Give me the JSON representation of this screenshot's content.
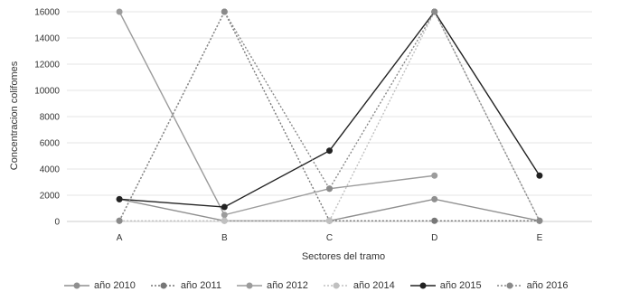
{
  "chart_data": {
    "type": "line",
    "title": "",
    "xlabel": "Sectores del tramo",
    "ylabel": "Concentracion colifomes",
    "categories": [
      "A",
      "B",
      "C",
      "D",
      "E"
    ],
    "ylim": [
      0,
      16000
    ],
    "yticks": [
      "0",
      "2000",
      "4000",
      "6000",
      "8000",
      "10000",
      "12000",
      "14000",
      "16000"
    ],
    "grid": true,
    "legend_position": "bottom",
    "series": [
      {
        "name": "año 2010",
        "color": "#8f8f8f",
        "dash": "solid",
        "values": [
          1700,
          50,
          50,
          1700,
          50
        ]
      },
      {
        "name": "año 2011",
        "color": "#777777",
        "dash": "dotted",
        "values": [
          50,
          16000,
          50,
          50,
          50
        ]
      },
      {
        "name": "año 2012",
        "color": "#9c9c9c",
        "dash": "solid",
        "values": [
          16000,
          500,
          2500,
          3500,
          null
        ]
      },
      {
        "name": "año 2014",
        "color": "#c0c0c0",
        "dash": "dotted",
        "values": [
          50,
          50,
          50,
          16000,
          50
        ]
      },
      {
        "name": "año 2015",
        "color": "#222222",
        "dash": "solid",
        "values": [
          1700,
          1100,
          5400,
          16000,
          3500
        ]
      },
      {
        "name": "año 2016",
        "color": "#8a8a8a",
        "dash": "dotted",
        "values": [
          50,
          16000,
          2500,
          16000,
          50
        ]
      }
    ]
  }
}
